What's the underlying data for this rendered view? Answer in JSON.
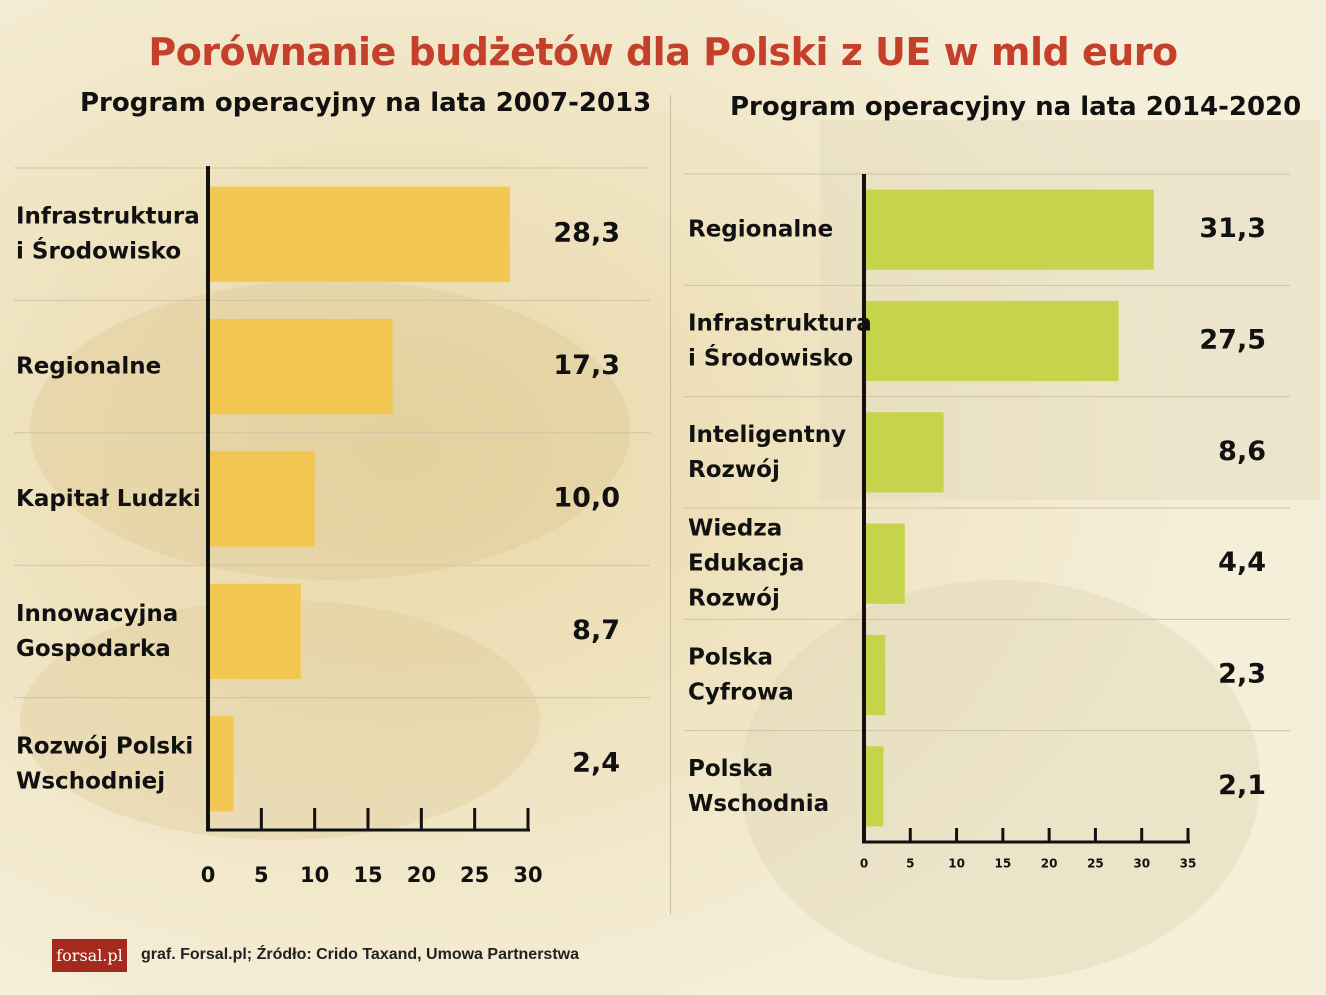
{
  "title": "Porównanie budżetów dla Polski z UE w mld euro",
  "chart_data": [
    {
      "type": "bar",
      "orientation": "horizontal",
      "title": "Program operacyjny na lata 2007-2013",
      "categories": [
        "Infrastruktura\ni Środowisko",
        "Regionalne",
        "Kapitał Ludzki",
        "Innowacyjna\nGospodarka",
        "Rozwój Polski\nWschodniej"
      ],
      "values": [
        28.3,
        17.3,
        10.0,
        8.7,
        2.4
      ],
      "value_labels": [
        "28,3",
        "17,3",
        "10,0",
        "8,7",
        "2,4"
      ],
      "xlim": [
        0,
        30
      ],
      "xticks": [
        "0",
        "5",
        "10",
        "15",
        "20",
        "25",
        "30"
      ],
      "bar_color": "#f2c444",
      "grid": false
    },
    {
      "type": "bar",
      "orientation": "horizontal",
      "title": "Program operacyjny na lata 2014-2020",
      "categories": [
        "Regionalne",
        "Infrastruktura\ni Środowisko",
        "Inteligentny\nRozwój",
        "Wiedza\nEdukacja\nRozwój",
        "Polska\nCyfrowa",
        "Polska\nWschodnia"
      ],
      "values": [
        31.3,
        27.5,
        8.6,
        4.4,
        2.3,
        2.1
      ],
      "value_labels": [
        "31,3",
        "27,5",
        "8,6",
        "4,4",
        "2,3",
        "2,1"
      ],
      "xlim": [
        0,
        35
      ],
      "xticks": [
        "0",
        "5",
        "10",
        "15",
        "20",
        "25",
        "30",
        "35"
      ],
      "bar_color": "#bfd13a",
      "grid": false
    }
  ],
  "footer": {
    "logo": "forsal.pl",
    "source": "graf. Forsal.pl;  Źródło: Crido Taxand, Umowa Partnerstwa"
  }
}
